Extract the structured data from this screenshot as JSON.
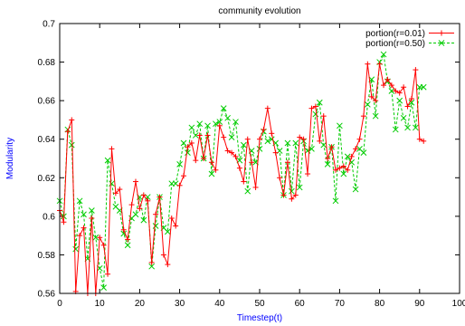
{
  "chart_data": {
    "type": "line",
    "title": "community evolution",
    "xlabel": "Timestep(t)",
    "ylabel": "Modularity",
    "xlim": [
      0,
      100
    ],
    "ylim": [
      0.56,
      0.7
    ],
    "x_ticks": [
      0,
      10,
      20,
      30,
      40,
      50,
      60,
      70,
      80,
      90,
      100
    ],
    "y_ticks": [
      0.56,
      0.58,
      0.6,
      0.62,
      0.64,
      0.66,
      0.68,
      0.7
    ],
    "grid": false,
    "legend_position": "top-right",
    "series": [
      {
        "name": "portion(r=0.01)",
        "color": "#ff0000",
        "line_style": "solid",
        "marker": "plus",
        "x": [
          0,
          1,
          2,
          3,
          4,
          5,
          6,
          7,
          8,
          9,
          10,
          11,
          12,
          13,
          14,
          15,
          16,
          17,
          18,
          19,
          20,
          21,
          22,
          23,
          24,
          25,
          26,
          27,
          28,
          29,
          30,
          31,
          32,
          33,
          34,
          35,
          36,
          37,
          38,
          39,
          40,
          41,
          42,
          43,
          44,
          45,
          46,
          47,
          48,
          49,
          50,
          51,
          52,
          53,
          54,
          55,
          56,
          57,
          58,
          59,
          60,
          61,
          62,
          63,
          64,
          65,
          66,
          67,
          68,
          69,
          70,
          71,
          72,
          73,
          74,
          75,
          76,
          77,
          78,
          79,
          80,
          81,
          82,
          83,
          84,
          85,
          86,
          87,
          88,
          89,
          90,
          91
        ],
        "y": [
          0.603,
          0.597,
          0.644,
          0.65,
          0.561,
          0.59,
          0.594,
          0.56,
          0.599,
          0.56,
          0.589,
          0.585,
          0.57,
          0.635,
          0.612,
          0.614,
          0.593,
          0.588,
          0.606,
          0.618,
          0.604,
          0.611,
          0.608,
          0.576,
          0.601,
          0.61,
          0.58,
          0.575,
          0.599,
          0.595,
          0.616,
          0.621,
          0.636,
          0.638,
          0.629,
          0.642,
          0.63,
          0.642,
          0.628,
          0.624,
          0.647,
          0.641,
          0.634,
          0.633,
          0.631,
          0.625,
          0.618,
          0.64,
          0.628,
          0.615,
          0.64,
          0.645,
          0.656,
          0.643,
          0.633,
          0.62,
          0.611,
          0.628,
          0.609,
          0.611,
          0.641,
          0.64,
          0.622,
          0.656,
          0.657,
          0.639,
          0.652,
          0.63,
          0.636,
          0.624,
          0.625,
          0.626,
          0.624,
          0.631,
          0.635,
          0.64,
          0.652,
          0.679,
          0.662,
          0.66,
          0.679,
          0.668,
          0.671,
          0.668,
          0.665,
          0.664,
          0.667,
          0.657,
          0.661,
          0.676,
          0.64,
          0.639
        ]
      },
      {
        "name": "portion(r=0.50)",
        "color": "#00cc00",
        "line_style": "dashed",
        "marker": "cross",
        "x": [
          0,
          1,
          2,
          3,
          4,
          5,
          6,
          7,
          8,
          9,
          10,
          11,
          12,
          13,
          14,
          15,
          16,
          17,
          18,
          19,
          20,
          21,
          22,
          23,
          24,
          25,
          26,
          27,
          28,
          29,
          30,
          31,
          32,
          33,
          34,
          35,
          36,
          37,
          38,
          39,
          40,
          41,
          42,
          43,
          44,
          45,
          46,
          47,
          48,
          49,
          50,
          51,
          52,
          53,
          54,
          55,
          56,
          57,
          58,
          59,
          60,
          61,
          62,
          63,
          64,
          65,
          66,
          67,
          68,
          69,
          70,
          71,
          72,
          73,
          74,
          75,
          76,
          77,
          78,
          79,
          80,
          81,
          82,
          83,
          84,
          85,
          86,
          87,
          88,
          89,
          90,
          91
        ],
        "y": [
          0.608,
          0.6,
          0.645,
          0.637,
          0.583,
          0.608,
          0.601,
          0.578,
          0.603,
          0.589,
          0.573,
          0.563,
          0.629,
          0.617,
          0.605,
          0.603,
          0.591,
          0.585,
          0.599,
          0.601,
          0.61,
          0.598,
          0.61,
          0.574,
          0.595,
          0.61,
          0.594,
          0.592,
          0.617,
          0.617,
          0.627,
          0.638,
          0.633,
          0.646,
          0.642,
          0.648,
          0.63,
          0.647,
          0.622,
          0.648,
          0.649,
          0.656,
          0.651,
          0.641,
          0.649,
          0.629,
          0.637,
          0.613,
          0.634,
          0.628,
          0.635,
          0.644,
          0.639,
          0.64,
          0.638,
          0.634,
          0.611,
          0.638,
          0.613,
          0.638,
          0.615,
          0.639,
          0.634,
          0.635,
          0.653,
          0.659,
          0.637,
          0.627,
          0.636,
          0.608,
          0.647,
          0.622,
          0.631,
          0.628,
          0.614,
          0.635,
          0.633,
          0.658,
          0.671,
          0.652,
          0.68,
          0.684,
          0.67,
          0.665,
          0.645,
          0.66,
          0.651,
          0.646,
          0.659,
          0.646,
          0.667,
          0.667
        ]
      }
    ]
  }
}
